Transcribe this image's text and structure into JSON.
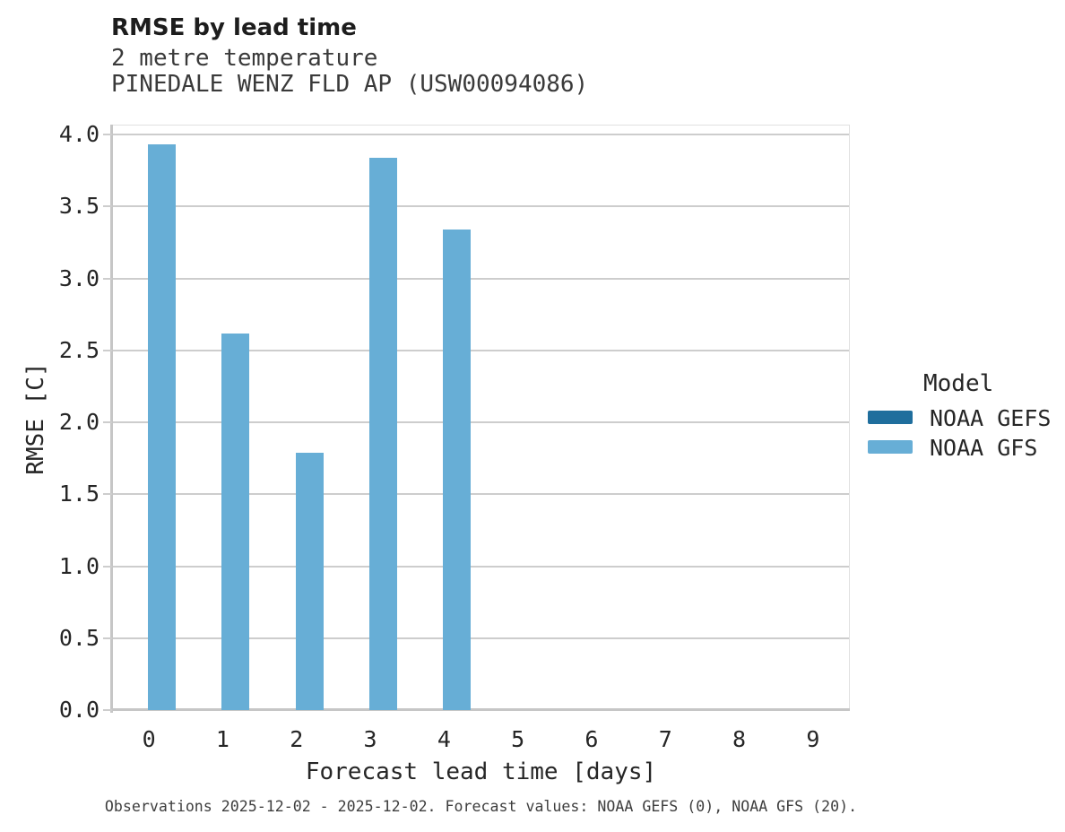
{
  "header": {
    "title": "RMSE by lead time",
    "subtitle_line1": "2 metre temperature",
    "subtitle_line2": "PINEDALE WENZ FLD AP (USW00094086)"
  },
  "axes": {
    "x_title": "Forecast lead time [days]",
    "y_title": "RMSE [C]"
  },
  "legend": {
    "title": "Model",
    "entries": [
      {
        "label": "NOAA GEFS",
        "color": "#1f6e9d"
      },
      {
        "label": "NOAA GFS",
        "color": "#67aed6"
      }
    ]
  },
  "footer": {
    "text": "Observations 2025-12-02 - 2025-12-02. Forecast values: NOAA GEFS (0), NOAA GFS (20)."
  },
  "chart_data": {
    "type": "bar",
    "title": "RMSE by lead time",
    "subtitle": [
      "2 metre temperature",
      "PINEDALE WENZ FLD AP (USW00094086)"
    ],
    "xlabel": "Forecast lead time [days]",
    "ylabel": "RMSE [C]",
    "categories": [
      "0",
      "1",
      "2",
      "3",
      "4",
      "5",
      "6",
      "7",
      "8",
      "9"
    ],
    "series": [
      {
        "name": "NOAA GEFS",
        "color": "#1f6e9d",
        "values": [
          null,
          null,
          null,
          null,
          null,
          null,
          null,
          null,
          null,
          null
        ]
      },
      {
        "name": "NOAA GFS",
        "color": "#67aed6",
        "values": [
          3.93,
          2.62,
          1.79,
          3.84,
          3.34,
          null,
          null,
          null,
          null,
          null
        ]
      }
    ],
    "ylim": [
      0,
      4.07
    ],
    "yticks": [
      "0.0",
      "0.5",
      "1.0",
      "1.5",
      "2.0",
      "2.5",
      "3.0",
      "3.5",
      "4.0"
    ],
    "grid": true,
    "legend_position": "right",
    "legend_title": "Model",
    "colors": {
      "grid": "#cdcdcd",
      "axis_domain": "#c6c6c6",
      "view_border": "#e1e1e1"
    }
  }
}
